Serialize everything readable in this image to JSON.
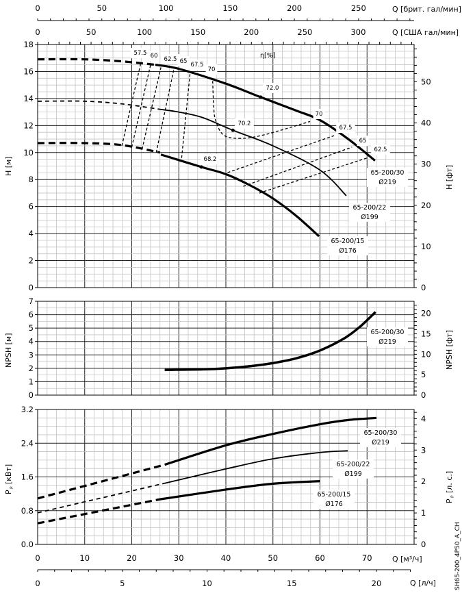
{
  "axes": {
    "top_brit": {
      "label": "Q [брит. гал/мин]",
      "ticks": [
        "0",
        "50",
        "100",
        "150",
        "200",
        "250"
      ]
    },
    "top_us": {
      "label": "Q [США гал/мин]",
      "ticks": [
        "0",
        "50",
        "100",
        "150",
        "200",
        "250",
        "300"
      ]
    },
    "bottom_m3h": {
      "label": "Q [м³/ч]",
      "ticks": [
        "0",
        "10",
        "20",
        "30",
        "40",
        "50",
        "60",
        "70"
      ]
    },
    "bottom_ls": {
      "label": "Q [л/ч]",
      "ticks": [
        "0",
        "5",
        "10",
        "15",
        "20"
      ]
    },
    "h_left": {
      "label": "H [м]",
      "ticks": [
        "0",
        "2",
        "4",
        "6",
        "8",
        "10",
        "12",
        "14",
        "16",
        "18"
      ]
    },
    "h_right": {
      "label": "H [фт]",
      "ticks": [
        "0",
        "10",
        "20",
        "30",
        "40",
        "50"
      ]
    },
    "npsh_left": {
      "label": "NPSH [м]",
      "ticks": [
        "0",
        "1",
        "2",
        "3",
        "4",
        "5",
        "6",
        "7"
      ]
    },
    "npsh_right": {
      "label": "NPSH [фт]",
      "ticks": [
        "0",
        "5",
        "10",
        "15",
        "20"
      ]
    },
    "p_left": {
      "label": "[кВт]",
      "symbol": "P",
      "sub": "P",
      "ticks": [
        "0.0",
        "0.8",
        "1.6",
        "2.4",
        "3.2"
      ]
    },
    "p_right": {
      "label": "[л. с.]",
      "symbol": "P",
      "sub": "P",
      "ticks": [
        "0",
        "1",
        "2",
        "3",
        "4"
      ]
    }
  },
  "eta_label": "η[%]",
  "drawing_id": "SH65-200_4P50_A_CH",
  "chart_data": [
    {
      "type": "line",
      "ylabel": "H [м]",
      "xlabel": "Q [м³/ч]",
      "xlim": [
        0,
        80
      ],
      "ylim": [
        0,
        18
      ],
      "grid": true,
      "series": [
        {
          "name": "65-200/30",
          "diameter": "Ø219",
          "dashed_points": [
            [
              0,
              16.9
            ],
            [
              10,
              16.9
            ],
            [
              18,
              16.75
            ],
            [
              25,
              16.5
            ]
          ],
          "points": [
            [
              25,
              16.5
            ],
            [
              30,
              16.2
            ],
            [
              40,
              15.1
            ],
            [
              47.4,
              14.1
            ],
            [
              55,
              13.1
            ],
            [
              60,
              12.4
            ],
            [
              66,
              11.0
            ],
            [
              71.7,
              9.4
            ]
          ],
          "bep": {
            "q": 47.4,
            "h": 14.1,
            "eta": "72.0"
          }
        },
        {
          "name": "65-200/22",
          "diameter": "Ø199",
          "dashed_points": [
            [
              0,
              13.8
            ],
            [
              10,
              13.8
            ],
            [
              18,
              13.6
            ],
            [
              26,
              13.2
            ]
          ],
          "points": [
            [
              26,
              13.2
            ],
            [
              30,
              13.0
            ],
            [
              35,
              12.6
            ],
            [
              41.5,
              11.65
            ],
            [
              50,
              10.5
            ],
            [
              60,
              8.7
            ],
            [
              65.6,
              6.8
            ]
          ],
          "bep": {
            "q": 41.5,
            "h": 11.65,
            "eta": "70.2"
          }
        },
        {
          "name": "65-200/15",
          "diameter": "Ø176",
          "dashed_points": [
            [
              0,
              10.7
            ],
            [
              10,
              10.7
            ],
            [
              18,
              10.55
            ],
            [
              26,
              10.0
            ]
          ],
          "points": [
            [
              26.2,
              9.85
            ],
            [
              34.8,
              8.93
            ],
            [
              40,
              8.4
            ],
            [
              45,
              7.6
            ],
            [
              50,
              6.6
            ],
            [
              55,
              5.3
            ],
            [
              59.8,
              3.8
            ]
          ],
          "bep": {
            "q": 34.8,
            "h": 8.93,
            "eta": "68.2"
          }
        }
      ],
      "efficiency_lines": [
        {
          "eta": "57.5",
          "points": [
            [
              17.9,
              10.5
            ],
            [
              21.9,
              16.6
            ]
          ]
        },
        {
          "eta": "60",
          "points": [
            [
              20.0,
              10.4
            ],
            [
              24.0,
              16.5
            ]
          ]
        },
        {
          "eta": "62.5",
          "points": [
            [
              22.2,
              10.25
            ],
            [
              26.2,
              16.3
            ]
          ]
        },
        {
          "eta": "65",
          "points": [
            [
              25.2,
              10.0
            ],
            [
              28.9,
              16.1
            ]
          ]
        },
        {
          "eta": "67.5",
          "points": [
            [
              30.6,
              9.6
            ],
            [
              32.4,
              15.9
            ]
          ]
        },
        {
          "eta": "70",
          "points": [
            [
              37.2,
              15.3
            ],
            [
              37.4,
              13.5
            ],
            [
              37.8,
              12.4
            ],
            [
              39.5,
              11.3
            ],
            [
              43,
              11.05
            ],
            [
              48,
              11.3
            ],
            [
              57.9,
              12.3
            ]
          ]
        },
        {
          "eta": "70",
          "points": [
            [
              57.9,
              12.3
            ]
          ]
        },
        {
          "eta": "67.5",
          "points": [
            [
              39.4,
              8.4
            ],
            [
              63,
              11.25
            ]
          ]
        },
        {
          "eta": "65",
          "points": [
            [
              43.7,
              7.5
            ],
            [
              66.8,
              10.4
            ]
          ]
        },
        {
          "eta": "62.5",
          "points": [
            [
              47.1,
              7.0
            ],
            [
              70,
              9.6
            ]
          ]
        }
      ]
    },
    {
      "type": "line",
      "ylabel": "NPSH [м]",
      "xlabel": "Q [м³/ч]",
      "xlim": [
        0,
        80
      ],
      "ylim": [
        0,
        7
      ],
      "grid": true,
      "series": [
        {
          "name": "65-200/30",
          "diameter": "Ø219",
          "points": [
            [
              27,
              1.88
            ],
            [
              35,
              1.92
            ],
            [
              40,
              2.0
            ],
            [
              45,
              2.15
            ],
            [
              50,
              2.39
            ],
            [
              55,
              2.75
            ],
            [
              60,
              3.33
            ],
            [
              65,
              4.2
            ],
            [
              68.5,
              5.1
            ],
            [
              71.8,
              6.2
            ]
          ]
        }
      ]
    },
    {
      "type": "line",
      "ylabel": "Pp [кВт]",
      "xlabel": "Q [м³/ч]",
      "xlim": [
        0,
        80
      ],
      "ylim": [
        0,
        3.2
      ],
      "grid": true,
      "series": [
        {
          "name": "65-200/30",
          "diameter": "Ø219",
          "dashed_points": [
            [
              0,
              1.09
            ],
            [
              27,
              1.89
            ]
          ],
          "points": [
            [
              27,
              1.89
            ],
            [
              40,
              2.35
            ],
            [
              50,
              2.62
            ],
            [
              60,
              2.85
            ],
            [
              66,
              2.95
            ],
            [
              72,
              3.0
            ]
          ]
        },
        {
          "name": "65-200/22",
          "diameter": "Ø199",
          "dashed_points": [
            [
              0,
              0.75
            ],
            [
              27,
              1.45
            ]
          ],
          "points": [
            [
              27,
              1.45
            ],
            [
              40,
              1.79
            ],
            [
              50,
              2.03
            ],
            [
              60,
              2.18
            ],
            [
              65.9,
              2.22
            ]
          ]
        },
        {
          "name": "65-200/15",
          "diameter": "Ø176",
          "dashed_points": [
            [
              0,
              0.5
            ],
            [
              26,
              1.07
            ]
          ],
          "points": [
            [
              26,
              1.07
            ],
            [
              40,
              1.3
            ],
            [
              50,
              1.44
            ],
            [
              60,
              1.5
            ]
          ]
        }
      ]
    }
  ]
}
